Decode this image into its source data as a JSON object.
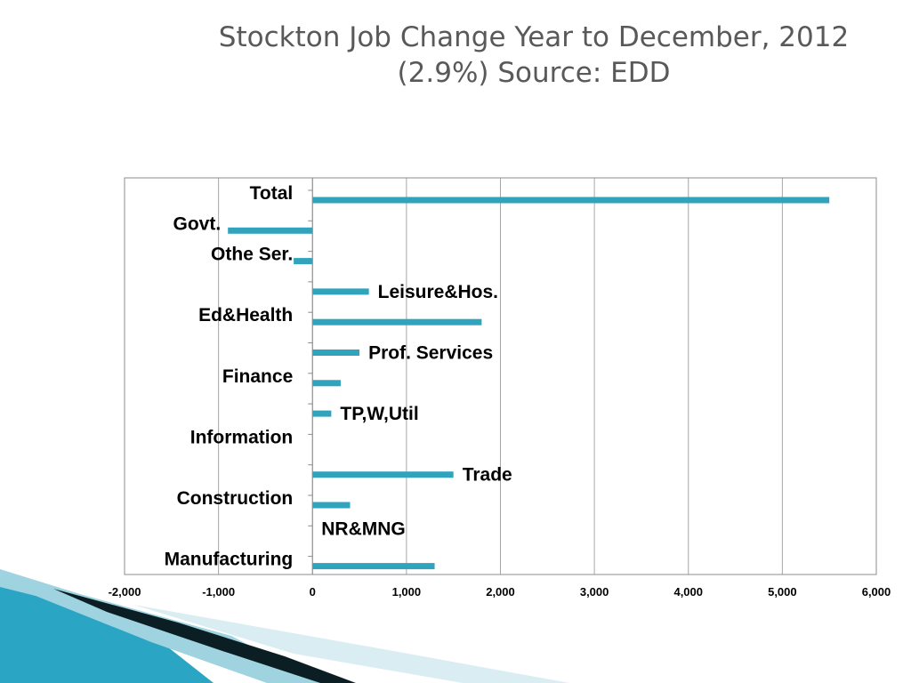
{
  "slide": {
    "title_line1": "Stockton Job Change Year to December, 2012",
    "title_line2": "(2.9%)  Source: EDD"
  },
  "colors": {
    "bar": "#31a3bd",
    "accent_dark": "#0b2a33",
    "accent_teal": "#2aa6c4"
  },
  "chart_data": {
    "type": "bar",
    "orientation": "horizontal",
    "title": "Stockton Job Change Year to December, 2012 (2.9%)  Source: EDD",
    "categories": [
      "Total",
      "Govt.",
      "Othe Ser.",
      "Leisure&Hos.",
      "Ed&Health",
      "Prof. Services",
      "Finance",
      "TP,W,Util",
      "Information",
      "Trade",
      "Construction",
      "NR&MNG",
      "Manufacturing"
    ],
    "values": [
      5500,
      -900,
      -200,
      600,
      1800,
      500,
      300,
      200,
      0,
      1500,
      400,
      0,
      1300
    ],
    "xlim": [
      -2000,
      6000
    ],
    "xticks": [
      "-2,000",
      "-1,000",
      "0",
      "1,000",
      "2,000",
      "3,000",
      "4,000",
      "5,000",
      "6,000"
    ],
    "grid": true,
    "legend": "none"
  }
}
